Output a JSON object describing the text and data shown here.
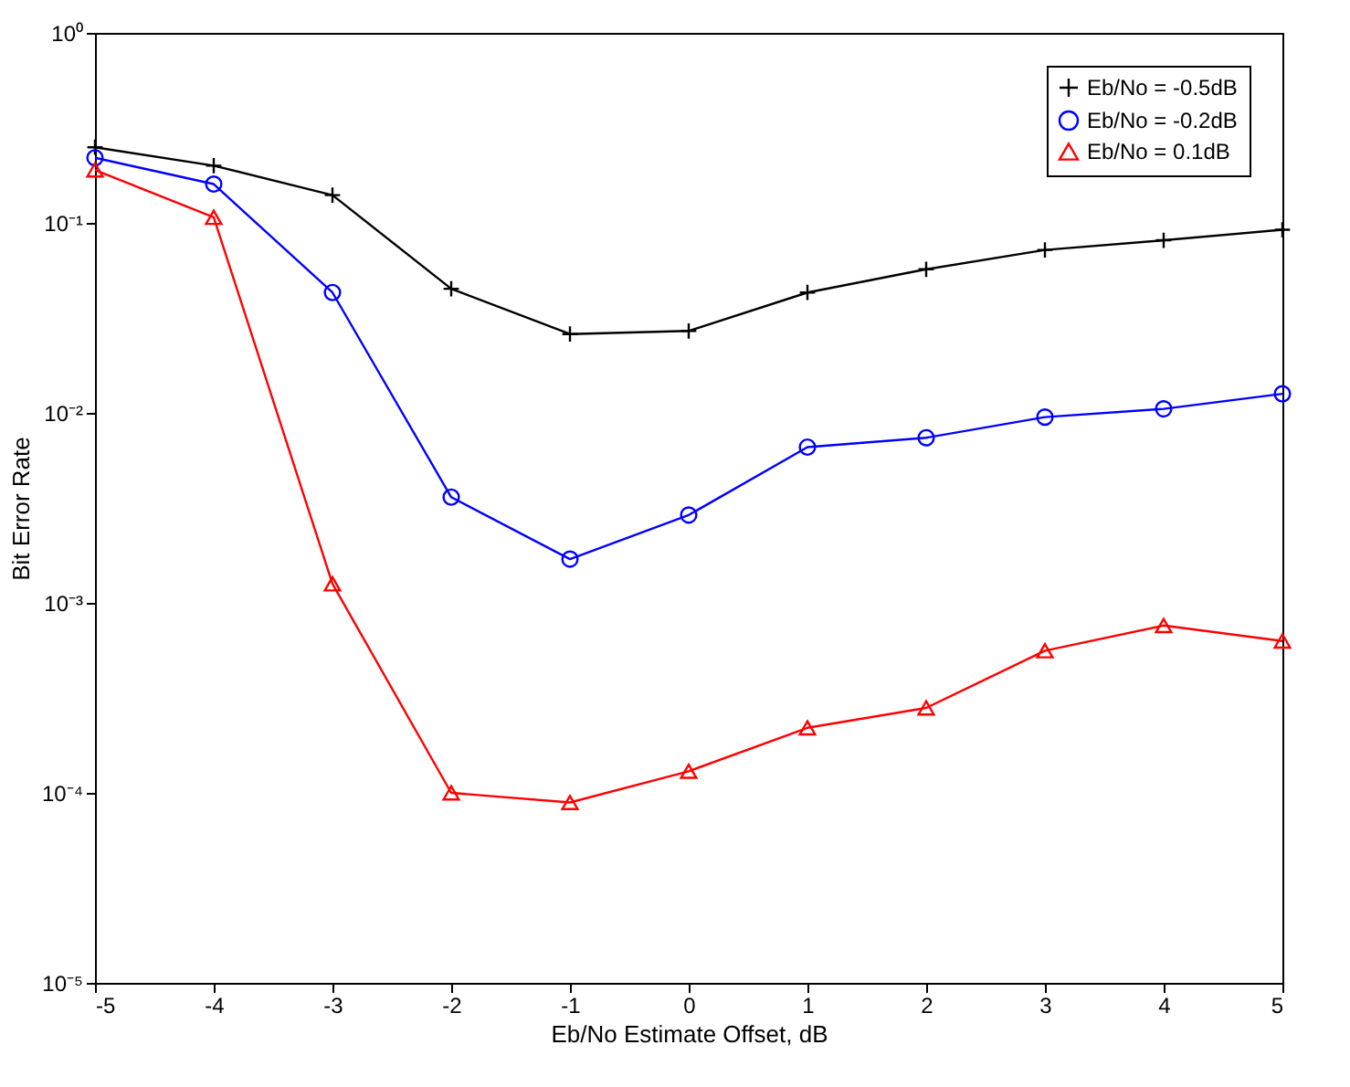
{
  "chart_data": {
    "type": "line",
    "xlabel": "Eb/No Estimate Offset, dB",
    "ylabel": "Bit Error Rate",
    "x": [
      -5,
      -4,
      -3,
      -2,
      -1,
      0,
      1,
      2,
      3,
      4,
      5
    ],
    "series": [
      {
        "name": "Eb/No = -0.5dB",
        "color": "#000000",
        "marker": "cross",
        "values": [
          0.25,
          0.2,
          0.14,
          0.045,
          0.026,
          0.027,
          0.043,
          0.057,
          0.072,
          0.081,
          0.092
        ]
      },
      {
        "name": "Eb/No = -0.2dB",
        "color": "#0000ff",
        "marker": "circle",
        "values": [
          0.22,
          0.16,
          0.043,
          0.0036,
          0.0017,
          0.0029,
          0.0066,
          0.0074,
          0.0095,
          0.0105,
          0.0126
        ]
      },
      {
        "name": "Eb/No = 0.1dB",
        "color": "#ff0000",
        "marker": "triangle",
        "values": [
          0.19,
          0.107,
          0.00126,
          0.0001,
          8.9e-05,
          0.00013,
          0.00022,
          0.00028,
          0.00056,
          0.00076,
          0.00063
        ]
      }
    ],
    "xlim": [
      -5,
      5
    ],
    "xticks": [
      -5,
      -4,
      -3,
      -2,
      -1,
      0,
      1,
      2,
      3,
      4,
      5
    ],
    "ylim": [
      1e-05,
      1
    ],
    "yticks": [
      {
        "value": 1e-05,
        "label": "10⁻⁵"
      },
      {
        "value": 0.0001,
        "label": "10⁻⁴"
      },
      {
        "value": 0.001,
        "label": "10⁻³"
      },
      {
        "value": 0.01,
        "label": "10⁻²"
      },
      {
        "value": 0.1,
        "label": "10⁻¹"
      },
      {
        "value": 1,
        "label": "10⁰"
      }
    ],
    "log": "y",
    "grid": false,
    "legend": "top right",
    "line_style": "solid"
  }
}
